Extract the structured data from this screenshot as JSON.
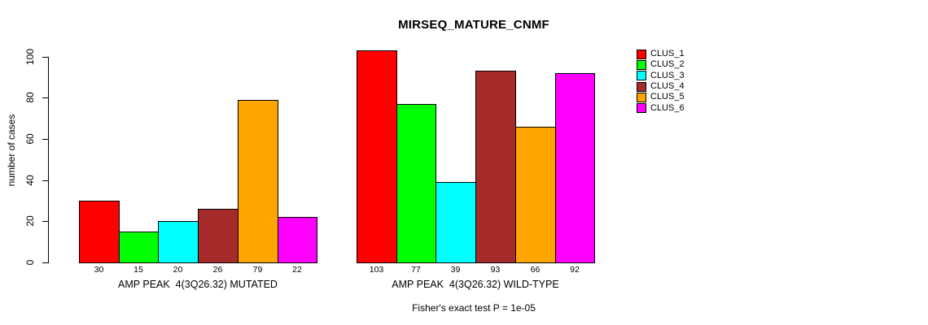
{
  "chart_data": {
    "type": "bar",
    "title": "MIRSEQ_MATURE_CNMF",
    "ylabel": "number of cases",
    "ylim": [
      0,
      100
    ],
    "yticks": [
      0,
      20,
      40,
      60,
      80,
      100
    ],
    "grid": false,
    "annotation": "Fisher's exact test P = 1e-05",
    "series_colors": [
      "#FF0000",
      "#00FF00",
      "#00FFFF",
      "#A52A2A",
      "#FFA500",
      "#FF00FF"
    ],
    "legend": {
      "position": "right",
      "entries": [
        {
          "label": "CLUS_1",
          "color": "#FF0000"
        },
        {
          "label": "CLUS_2",
          "color": "#00FF00"
        },
        {
          "label": "CLUS_3",
          "color": "#00FFFF"
        },
        {
          "label": "CLUS_4",
          "color": "#A52A2A"
        },
        {
          "label": "CLUS_5",
          "color": "#FFA500"
        },
        {
          "label": "CLUS_6",
          "color": "#FF00FF"
        }
      ]
    },
    "groups": [
      {
        "label": "AMP PEAK  4(3Q26.32) MUTATED",
        "values": [
          30,
          15,
          20,
          26,
          79,
          22
        ]
      },
      {
        "label": "AMP PEAK  4(3Q26.32) WILD-TYPE",
        "values": [
          103,
          77,
          39,
          93,
          66,
          92
        ]
      }
    ],
    "bar_value_labels_shown": true,
    "background_color": "#FFFFFF",
    "text_color": "#000000"
  }
}
